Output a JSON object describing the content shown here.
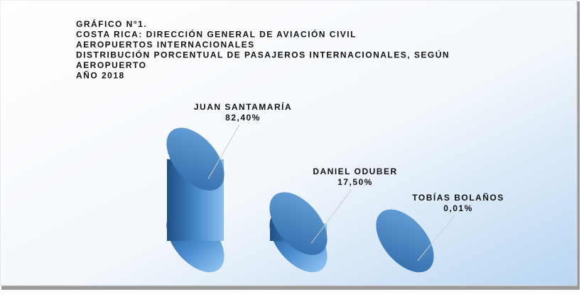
{
  "chart_data": {
    "type": "bar",
    "title": [
      "GRÁFICO N°1.",
      "COSTA RICA: DIRECCIÓN GENERAL DE AVIACIÓN CIVIL",
      "AEROPUERTOS INTERNACIONALES",
      "DISTRIBUCIÓN PORCENTUAL DE  PASAJEROS INTERNACIONALES, SEGÚN",
      "AEROPUERTO",
      "AÑO 2018"
    ],
    "categories": [
      "JUAN SANTAMARÍA",
      "DANIEL ODUBER",
      "TOBÍAS BOLAÑOS"
    ],
    "values": [
      82.4,
      17.5,
      0.01
    ],
    "value_labels": [
      "82,40%",
      "17,50%",
      "0,01%"
    ],
    "color": "#4a8ccf"
  }
}
